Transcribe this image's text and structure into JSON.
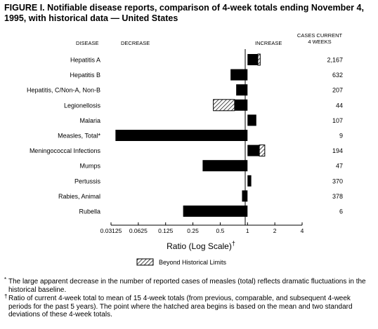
{
  "title": "FIGURE I. Notifiable disease reports, comparison of 4-week totals ending November 4, 1995, with historical data — United States",
  "chart_data": {
    "type": "bar",
    "orientation": "horizontal",
    "scale": "log2",
    "header": {
      "disease": "DISEASE",
      "decrease": "DECREASE",
      "increase": "INCREASE",
      "cases": "CASES CURRENT 4 WEEKS"
    },
    "xlabel": "Ratio (Log Scale)",
    "xlabel_mark": "†",
    "xticks": [
      0.03125,
      0.0625,
      0.125,
      0.25,
      0.5,
      1,
      2,
      4
    ],
    "xtick_labels": [
      "0.03125",
      "0.0625",
      "0.125",
      "0.25",
      "0.5",
      "1",
      "2",
      "4"
    ],
    "xlim": [
      0.03125,
      4
    ],
    "legend": "Beyond Historical Limits",
    "categories": [
      "Hepatitis A",
      "Hepatitis B",
      "Hepatitis, C/Non-A, Non-B",
      "Legionellosis",
      "Malaria",
      "Measles, Total*",
      "Meningococcal Infections",
      "Mumps",
      "Pertussis",
      "Rabies, Animal",
      "Rubella"
    ],
    "ratios": [
      1.38,
      0.65,
      0.75,
      0.42,
      1.25,
      0.035,
      1.55,
      0.32,
      1.1,
      0.87,
      0.195
    ],
    "hatch_from": [
      1.3,
      null,
      null,
      0.72,
      null,
      null,
      1.35,
      null,
      null,
      null,
      null
    ],
    "cases": [
      "2,167",
      "632",
      "207",
      "44",
      "107",
      "9",
      "194",
      "47",
      "370",
      "378",
      "6"
    ]
  },
  "footnotes": [
    {
      "mark": "*",
      "text": "The large apparent decrease in the number of reported cases of measles (total) reflects dramatic fluctuations in the historical baseline."
    },
    {
      "mark": "†",
      "text": "Ratio of current 4-week total to mean of 15 4-week totals (from previous, comparable, and subsequent 4-week periods for the past 5 years). The point where the hatched area begins is based on the mean and two standard deviations of these 4-week totals."
    }
  ]
}
